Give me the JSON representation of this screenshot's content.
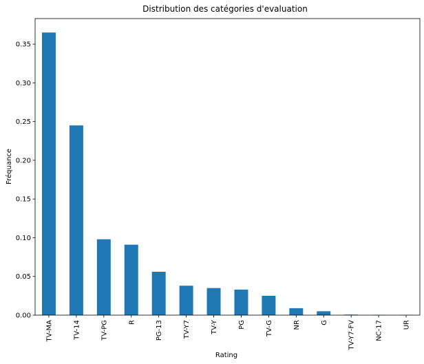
{
  "chart_data": {
    "type": "bar",
    "title": "Distribution des catégories d'evaluation",
    "xlabel": "Rating",
    "ylabel": "Fréquance",
    "categories": [
      "TV-MA",
      "TV-14",
      "TV-PG",
      "R",
      "PG-13",
      "TV-Y7",
      "TV-Y",
      "PG",
      "TV-G",
      "NR",
      "G",
      "TV-Y7-FV",
      "NC-17",
      "UR"
    ],
    "values": [
      0.365,
      0.245,
      0.098,
      0.091,
      0.056,
      0.038,
      0.035,
      0.033,
      0.025,
      0.009,
      0.005,
      0.0007,
      0.0004,
      0.0004
    ],
    "ylim": [
      0,
      0.383
    ],
    "yticks": [
      0.0,
      0.05,
      0.1,
      0.15,
      0.2,
      0.25,
      0.3,
      0.35
    ],
    "ytick_labels": [
      "0.00",
      "0.05",
      "0.10",
      "0.15",
      "0.20",
      "0.25",
      "0.30",
      "0.35"
    ],
    "bar_color": "#1f77b4",
    "grid": false,
    "legend": "none"
  }
}
